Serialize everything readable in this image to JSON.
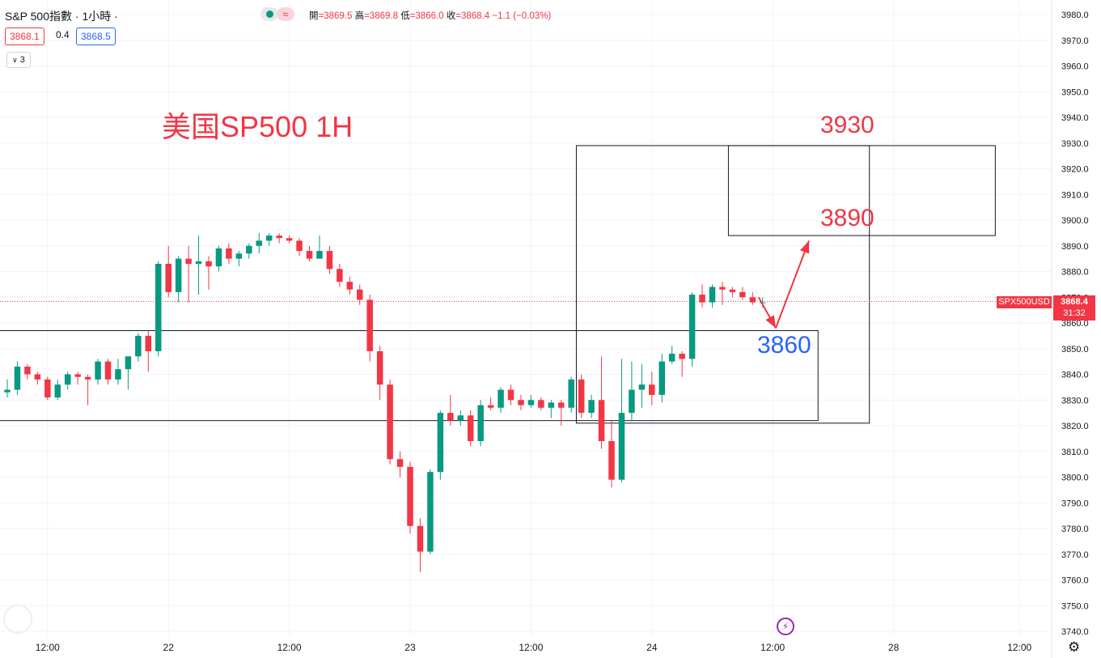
{
  "header": {
    "symbol_title": "S&P 500指數 · 1小時 ·",
    "ohlc": [
      {
        "k": "開",
        "v": "=3869.5"
      },
      {
        "k": "高",
        "v": "=3869.8"
      },
      {
        "k": "低",
        "v": "=3866.0"
      },
      {
        "k": "收",
        "v": "=3868.4"
      }
    ],
    "change": "−1.1 (−0.03%)",
    "pill_icon": "wave-icon",
    "pill_glyph": "≈",
    "bid": "3868.1",
    "spread": "0.4",
    "ask": "3868.5",
    "collapse_count": "3"
  },
  "annotations": {
    "title": "美国SP500 1H",
    "level_3930": "3930",
    "level_3890": "3890",
    "level_3860": "3860"
  },
  "price_tags": {
    "symbol_label": "SPX500USD",
    "last_price": "3868.4",
    "countdown": "31:32"
  },
  "colors": {
    "up": "#089981",
    "down": "#f23645",
    "annotation_red": "#f23645",
    "annotation_blue": "#2962ff"
  },
  "icons": [
    "gear-icon",
    "lightning-icon",
    "loading-icon"
  ],
  "chart_data": {
    "type": "candlestick",
    "timeframe": "1H",
    "y_ticks": [
      3740,
      3750,
      3760,
      3770,
      3780,
      3790,
      3800,
      3810,
      3820,
      3830,
      3840,
      3850,
      3860,
      3870,
      3880,
      3890,
      3900,
      3910,
      3920,
      3930,
      3940,
      3950,
      3960,
      3970,
      3980
    ],
    "y_tick_labels": [
      "3740.0",
      "3750.0",
      "3760.0",
      "3770.0",
      "3780.0",
      "3790.0",
      "3800.0",
      "3810.0",
      "3820.0",
      "3830.0",
      "3840.0",
      "3850.0",
      "3860.0",
      "3870.0",
      "3880.0",
      "3890.0",
      "3900.0",
      "3910.0",
      "3920.0",
      "3930.0",
      "3940.0",
      "3950.0",
      "3960.0",
      "3970.0",
      "3980.0"
    ],
    "ylim": [
      3735,
      3985
    ],
    "x_ticks": [
      {
        "i": 4,
        "label": "12:00"
      },
      {
        "i": 16,
        "label": "22"
      },
      {
        "i": 28,
        "label": "12:00"
      },
      {
        "i": 40,
        "label": "23"
      },
      {
        "i": 52,
        "label": "12:00"
      },
      {
        "i": 64,
        "label": "24"
      },
      {
        "i": 76,
        "label": "12:00"
      },
      {
        "i": 88,
        "label": "28"
      },
      {
        "i": 100.5,
        "label": "12:00"
      }
    ],
    "last_price": 3868.4,
    "candles": [
      [
        3833,
        3838,
        3831,
        3834
      ],
      [
        3834,
        3845,
        3832,
        3843
      ],
      [
        3843,
        3844,
        3838,
        3840
      ],
      [
        3840,
        3841,
        3836,
        3838
      ],
      [
        3838,
        3839,
        3830,
        3831
      ],
      [
        3831,
        3838,
        3830,
        3836
      ],
      [
        3836,
        3841,
        3834,
        3840
      ],
      [
        3840,
        3841,
        3836,
        3839
      ],
      [
        3839,
        3840,
        3828,
        3838
      ],
      [
        3838,
        3846,
        3836,
        3845
      ],
      [
        3845,
        3846,
        3836,
        3838
      ],
      [
        3838,
        3846,
        3836,
        3842
      ],
      [
        3842,
        3847,
        3834,
        3847
      ],
      [
        3847,
        3856,
        3845,
        3855
      ],
      [
        3855,
        3857,
        3841,
        3849
      ],
      [
        3849,
        3884,
        3847,
        3883
      ],
      [
        3883,
        3890,
        3870,
        3872
      ],
      [
        3872,
        3886,
        3868,
        3885
      ],
      [
        3885,
        3890,
        3868,
        3883
      ],
      [
        3883,
        3894,
        3871,
        3884
      ],
      [
        3884,
        3886,
        3873,
        3882
      ],
      [
        3882,
        3890,
        3880,
        3889
      ],
      [
        3889,
        3891,
        3883,
        3885
      ],
      [
        3885,
        3888,
        3882,
        3887
      ],
      [
        3887,
        3891,
        3885,
        3890
      ],
      [
        3890,
        3895,
        3887,
        3892
      ],
      [
        3892,
        3895,
        3890,
        3894
      ],
      [
        3894,
        3895,
        3891,
        3893
      ],
      [
        3893,
        3894,
        3891,
        3892
      ],
      [
        3892,
        3893,
        3886,
        3888
      ],
      [
        3888,
        3890,
        3884,
        3885
      ],
      [
        3885,
        3894,
        3885,
        3888
      ],
      [
        3888,
        3890,
        3879,
        3881
      ],
      [
        3881,
        3883,
        3874,
        3876
      ],
      [
        3876,
        3878,
        3871,
        3873
      ],
      [
        3873,
        3875,
        3867,
        3869
      ],
      [
        3869,
        3871,
        3845,
        3849
      ],
      [
        3849,
        3851,
        3830,
        3836
      ],
      [
        3836,
        3838,
        3805,
        3807
      ],
      [
        3807,
        3810,
        3800,
        3804
      ],
      [
        3804,
        3806,
        3778,
        3781
      ],
      [
        3781,
        3784,
        3763,
        3771
      ],
      [
        3771,
        3803,
        3770,
        3802
      ],
      [
        3802,
        3826,
        3799,
        3825
      ],
      [
        3825,
        3832,
        3820,
        3822
      ],
      [
        3822,
        3826,
        3820,
        3824
      ],
      [
        3824,
        3826,
        3812,
        3814
      ],
      [
        3814,
        3830,
        3812,
        3828
      ],
      [
        3828,
        3831,
        3826,
        3827
      ],
      [
        3827,
        3835,
        3825,
        3834
      ],
      [
        3834,
        3836,
        3828,
        3830
      ],
      [
        3830,
        3832,
        3826,
        3828
      ],
      [
        3828,
        3832,
        3827,
        3830
      ],
      [
        3830,
        3831,
        3826,
        3827
      ],
      [
        3827,
        3830,
        3823,
        3829
      ],
      [
        3829,
        3830,
        3820,
        3827
      ],
      [
        3827,
        3839,
        3825,
        3838
      ],
      [
        3838,
        3840,
        3823,
        3825
      ],
      [
        3825,
        3832,
        3823,
        3830
      ],
      [
        3830,
        3847,
        3811,
        3814
      ],
      [
        3814,
        3822,
        3796,
        3799
      ],
      [
        3799,
        3846,
        3798,
        3825
      ],
      [
        3825,
        3845,
        3822,
        3834
      ],
      [
        3834,
        3844,
        3827,
        3836
      ],
      [
        3836,
        3841,
        3828,
        3832
      ],
      [
        3832,
        3848,
        3829,
        3845
      ],
      [
        3845,
        3851,
        3844,
        3848
      ],
      [
        3848,
        3849,
        3839,
        3846
      ],
      [
        3846,
        3872,
        3843,
        3871
      ],
      [
        3871,
        3875,
        3866,
        3868
      ],
      [
        3868,
        3875,
        3866,
        3874
      ],
      [
        3874,
        3876,
        3867,
        3873
      ],
      [
        3873,
        3874,
        3870,
        3872
      ],
      [
        3872,
        3874,
        3869,
        3870
      ],
      [
        3870,
        3872,
        3867,
        3868
      ],
      [
        3868,
        3870,
        3866,
        3868
      ]
    ],
    "rectangles": [
      {
        "i0": -15.6,
        "i1": 80.5,
        "p0": 3822,
        "p1": 3857,
        "color": "#131722"
      },
      {
        "i0": 56.5,
        "i1": 85.6,
        "p0": 3821,
        "p1": 3929,
        "color": "#131722"
      },
      {
        "i0": 71.6,
        "i1": 98.1,
        "p0": 3894,
        "p1": 3929,
        "color": "#131722"
      }
    ],
    "arrows": [
      {
        "i0": 74.6,
        "p0": 3870,
        "i1": 76.3,
        "p1": 3858
      },
      {
        "i0": 76.3,
        "p0": 3858,
        "i1": 79.6,
        "p1": 3892
      }
    ]
  }
}
